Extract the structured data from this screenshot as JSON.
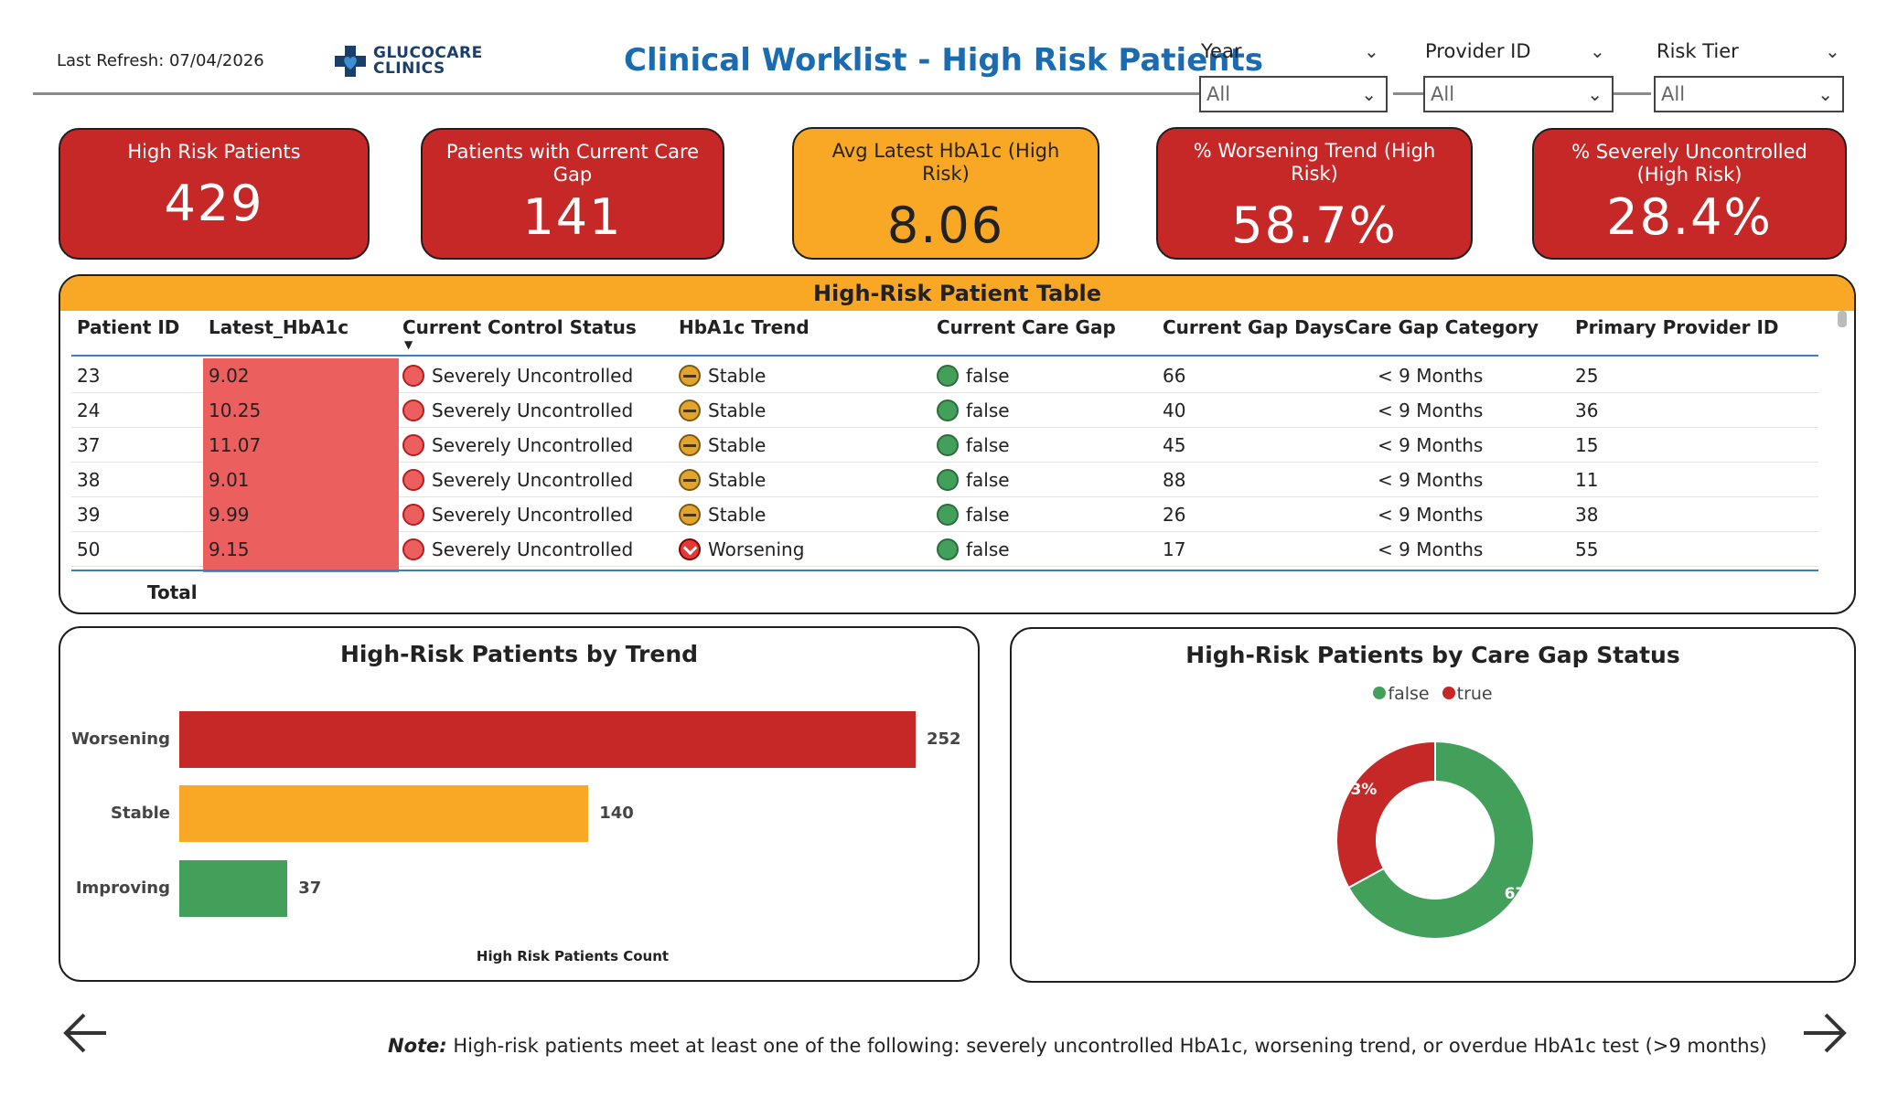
{
  "header": {
    "last_refresh": "Last Refresh: 07/04/2026",
    "logo_line1": "GLUCOCARE",
    "logo_line2": "CLINICS",
    "title": "Clinical Worklist - High Risk Patients"
  },
  "slicers": [
    {
      "label": "Year",
      "value": "All"
    },
    {
      "label": "Provider ID",
      "value": "All"
    },
    {
      "label": "Risk Tier",
      "value": "All"
    }
  ],
  "kpis": [
    {
      "label": "High Risk Patients",
      "value": "429"
    },
    {
      "label": "Patients with Current Care Gap",
      "value": "141"
    },
    {
      "label": "Avg Latest HbA1c (High Risk)",
      "value": "8.06"
    },
    {
      "label": "% Worsening Trend (High Risk)",
      "value": "58.7%"
    },
    {
      "label": "% Severely Uncontrolled (High Risk)",
      "value": "28.4%"
    }
  ],
  "table": {
    "title": "High-Risk Patient Table",
    "columns": [
      "Patient ID",
      "Latest_HbA1c",
      "Current Control Status",
      "HbA1c Trend",
      "Current Care Gap",
      "Current Gap Days",
      "Care Gap Category",
      "Primary Provider ID"
    ],
    "rows": [
      {
        "id": "23",
        "hba1c": "9.02",
        "status": "Severely Uncontrolled",
        "trend": "Stable",
        "gap": "false",
        "days": "66",
        "category": "< 9 Months",
        "provider": "25"
      },
      {
        "id": "24",
        "hba1c": "10.25",
        "status": "Severely Uncontrolled",
        "trend": "Stable",
        "gap": "false",
        "days": "40",
        "category": "< 9 Months",
        "provider": "36"
      },
      {
        "id": "37",
        "hba1c": "11.07",
        "status": "Severely Uncontrolled",
        "trend": "Stable",
        "gap": "false",
        "days": "45",
        "category": "< 9 Months",
        "provider": "15"
      },
      {
        "id": "38",
        "hba1c": "9.01",
        "status": "Severely Uncontrolled",
        "trend": "Stable",
        "gap": "false",
        "days": "88",
        "category": "< 9 Months",
        "provider": "11"
      },
      {
        "id": "39",
        "hba1c": "9.99",
        "status": "Severely Uncontrolled",
        "trend": "Stable",
        "gap": "false",
        "days": "26",
        "category": "< 9 Months",
        "provider": "38"
      },
      {
        "id": "50",
        "hba1c": "9.15",
        "status": "Severely Uncontrolled",
        "trend": "Worsening",
        "gap": "false",
        "days": "17",
        "category": "< 9 Months",
        "provider": "55"
      }
    ],
    "total_label": "Total"
  },
  "chart_data": [
    {
      "type": "bar",
      "title": "High-Risk Patients by Trend",
      "orientation": "horizontal",
      "categories": [
        "Worsening",
        "Stable",
        "Improving"
      ],
      "values": [
        252,
        140,
        37
      ],
      "colors": [
        "#c62828",
        "#f9a825",
        "#43a05a"
      ],
      "xlabel": "High Risk Patients Count",
      "ylabel": "",
      "xlim": [
        0,
        252
      ],
      "grid": false
    },
    {
      "type": "pie",
      "style": "donut",
      "title": "High-Risk Patients by Care Gap Status",
      "categories": [
        "false",
        "true"
      ],
      "values": [
        67,
        33
      ],
      "labels": [
        "67%",
        "33%"
      ],
      "colors": [
        "#43a05a",
        "#c62828"
      ],
      "legend": "top-center"
    }
  ],
  "footer": {
    "note_prefix": "Note:",
    "note_text": " High-risk patients meet at least one of the following: severely uncontrolled HbA1c, worsening trend, or overdue HbA1c test (>9 months)"
  },
  "icons": {
    "prev": "arrow-left-icon",
    "next": "arrow-right-icon"
  }
}
